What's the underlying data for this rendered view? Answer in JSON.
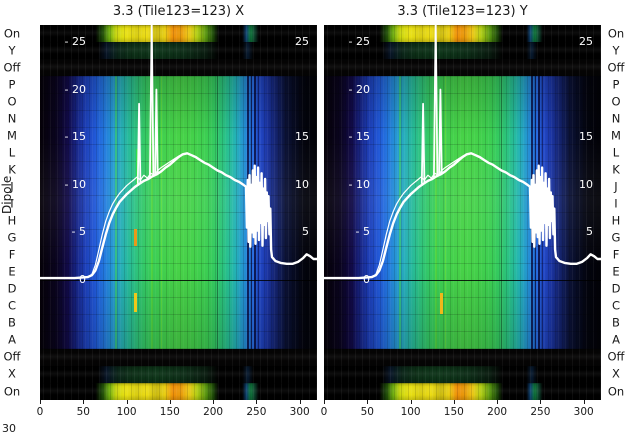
{
  "figure": {
    "ylabel": "Dipole",
    "corner_label": "30"
  },
  "chart_data": {
    "type": "heatmap",
    "description": "Two waterfall heatmaps with overlaid white bandpass spectrum lines",
    "charts": [
      {
        "title": "3.3 (Tile123=123) X"
      },
      {
        "title": "3.3 (Tile123=123) Y"
      }
    ],
    "x_axis": {
      "ticks": [
        0,
        50,
        100,
        150,
        200,
        250,
        300
      ],
      "range": [
        0,
        320
      ]
    },
    "inner_y_axis": {
      "zero_frac": 0.68,
      "unit_frac": 0.0254,
      "left_ticks": [
        {
          "label": "- 25",
          "value": 25
        },
        {
          "label": "- 20",
          "value": 20
        },
        {
          "label": "- 15",
          "value": 15
        },
        {
          "label": "- 10",
          "value": 10
        },
        {
          "label": "- 5",
          "value": 5
        },
        {
          "label": "0",
          "value": 0
        }
      ],
      "right_ticks": [
        {
          "label": "25",
          "value": 25
        },
        {
          "label": "15",
          "value": 15
        },
        {
          "label": "10",
          "value": 10
        },
        {
          "label": "5",
          "value": 5
        }
      ]
    },
    "rows": [
      "On",
      "Y",
      "Off",
      "P",
      "O",
      "N",
      "M",
      "L",
      "K",
      "J",
      "I",
      "H",
      "G",
      "F",
      "E",
      "D",
      "C",
      "B",
      "A",
      "Off",
      "X",
      "On"
    ],
    "row_types": [
      "on",
      "pol",
      "off",
      "body",
      "body",
      "body",
      "body",
      "body",
      "body",
      "body",
      "body",
      "body",
      "body",
      "body",
      "body",
      "body",
      "body",
      "body",
      "body",
      "off",
      "pol",
      "on"
    ],
    "off_row_color": "#050404",
    "line_color": "#ffffff",
    "colormap_stops": [
      [
        0.0,
        "#050108"
      ],
      [
        0.06,
        "#0a0420"
      ],
      [
        0.1,
        "#110a48"
      ],
      [
        0.126,
        "#16207c"
      ],
      [
        0.16,
        "#1c3cb4"
      ],
      [
        0.198,
        "#2158d8"
      ],
      [
        0.23,
        "#2377e0"
      ],
      [
        0.26,
        "#2596d4"
      ],
      [
        0.289,
        "#27adbd"
      ],
      [
        0.32,
        "#27bb9a"
      ],
      [
        0.35,
        "#2ec47c"
      ],
      [
        0.38,
        "#35ca64"
      ],
      [
        0.41,
        "#3bce55"
      ],
      [
        0.451,
        "#42d14c"
      ],
      [
        0.5,
        "#48d348"
      ],
      [
        0.55,
        "#44d24a"
      ],
      [
        0.6,
        "#3ccf52"
      ],
      [
        0.632,
        "#33ca62"
      ],
      [
        0.66,
        "#2bc47e"
      ],
      [
        0.685,
        "#26bd9a"
      ],
      [
        0.704,
        "#24b4b4"
      ],
      [
        0.73,
        "#2499cf"
      ],
      [
        0.755,
        "#237adf"
      ],
      [
        0.775,
        "#2360dd"
      ],
      [
        0.794,
        "#2148c8"
      ],
      [
        0.82,
        "#1b35a4"
      ],
      [
        0.845,
        "#152678"
      ],
      [
        0.87,
        "#0f1a52"
      ],
      [
        0.884,
        "#0b1238"
      ],
      [
        0.92,
        "#060a20"
      ],
      [
        0.95,
        "#03040e"
      ],
      [
        1.0,
        "#010106"
      ]
    ],
    "on_row_stops": [
      [
        0.0,
        "#000000"
      ],
      [
        0.2,
        "#000000"
      ],
      [
        0.225,
        "#1d4a08"
      ],
      [
        0.25,
        "#6fae10"
      ],
      [
        0.275,
        "#c8d50e"
      ],
      [
        0.31,
        "#e9e112"
      ],
      [
        0.35,
        "#d8cc10"
      ],
      [
        0.385,
        "#eede14"
      ],
      [
        0.42,
        "#c8b80e"
      ],
      [
        0.45,
        "#e8cf12"
      ],
      [
        0.48,
        "#ef8e08"
      ],
      [
        0.51,
        "#e79a0a"
      ],
      [
        0.535,
        "#eec614"
      ],
      [
        0.565,
        "#b5cf12"
      ],
      [
        0.6,
        "#55930e"
      ],
      [
        0.625,
        "#1d4a08"
      ],
      [
        0.645,
        "#000000"
      ],
      [
        0.73,
        "#000000"
      ],
      [
        0.745,
        "#0c3f6e"
      ],
      [
        0.76,
        "#0f7a3c"
      ],
      [
        0.775,
        "#0c3f2a"
      ],
      [
        0.79,
        "#000000"
      ],
      [
        1.0,
        "#000000"
      ]
    ],
    "pol_row_stops": [
      [
        0.0,
        "#000000"
      ],
      [
        0.21,
        "#000000"
      ],
      [
        0.24,
        "#071426"
      ],
      [
        0.28,
        "#0a2418"
      ],
      [
        0.33,
        "#0c2e16"
      ],
      [
        0.42,
        "#0d3418"
      ],
      [
        0.52,
        "#0c2c16"
      ],
      [
        0.6,
        "#081a0e"
      ],
      [
        0.645,
        "#000000"
      ],
      [
        0.73,
        "#000000"
      ],
      [
        0.75,
        "#071a30"
      ],
      [
        0.77,
        "#000000"
      ],
      [
        1.0,
        "#000000"
      ]
    ],
    "stripes": [
      {
        "x": 0.27,
        "w": 2,
        "color": "#3fd44f",
        "a": 0.55
      },
      {
        "x": 0.4,
        "w": 2,
        "color": "#62df3a",
        "a": 0.6
      },
      {
        "x": 0.435,
        "w": 1,
        "color": "#7ae636",
        "a": 0.5
      },
      {
        "x": 0.64,
        "w": 1,
        "color": "#000000",
        "a": 0.35
      },
      {
        "x": 0.748,
        "w": 2,
        "color": "#0a1248",
        "a": 0.85
      },
      {
        "x": 0.762,
        "w": 1,
        "color": "#0a1248",
        "a": 0.85
      },
      {
        "x": 0.774,
        "w": 2,
        "color": "#0a1248",
        "a": 0.9
      },
      {
        "x": 0.786,
        "w": 1,
        "color": "#101c68",
        "a": 0.8
      }
    ],
    "marks_per_chart": [
      [
        {
          "x": 0.34,
          "top": 0.545,
          "h": 0.045,
          "w": 3,
          "color": "#e8991a"
        },
        {
          "x": 0.34,
          "top": 0.715,
          "h": 0.05,
          "w": 3,
          "color": "#f0c81a"
        },
        {
          "x": 0.348,
          "top": 0.33,
          "h": 0.1,
          "w": 2,
          "color": "#35e04a"
        }
      ],
      [
        {
          "x": 0.42,
          "top": 0.715,
          "h": 0.055,
          "w": 3,
          "color": "#f0b81a"
        }
      ]
    ],
    "line_main": [
      [
        0,
        0.2
      ],
      [
        40,
        0.2
      ],
      [
        55,
        0.3
      ],
      [
        60,
        0.5
      ],
      [
        64,
        1.0
      ],
      [
        68,
        2.0
      ],
      [
        72,
        3.4
      ],
      [
        76,
        4.8
      ],
      [
        80,
        6.0
      ],
      [
        84,
        6.9
      ],
      [
        88,
        7.6
      ],
      [
        92,
        8.2
      ],
      [
        96,
        8.6
      ],
      [
        100,
        9.0
      ],
      [
        105,
        9.4
      ],
      [
        110,
        9.8
      ],
      [
        115,
        10.1
      ],
      [
        120,
        10.4
      ],
      [
        125,
        10.6
      ],
      [
        130,
        10.9
      ],
      [
        135,
        11.1
      ],
      [
        140,
        11.4
      ],
      [
        145,
        11.8
      ],
      [
        150,
        12.1
      ],
      [
        155,
        12.5
      ],
      [
        160,
        12.9
      ],
      [
        165,
        13.2
      ],
      [
        170,
        13.3
      ],
      [
        175,
        13.1
      ],
      [
        180,
        12.9
      ],
      [
        185,
        12.6
      ],
      [
        190,
        12.3
      ],
      [
        195,
        12.1
      ],
      [
        200,
        11.8
      ],
      [
        205,
        11.5
      ],
      [
        210,
        11.3
      ],
      [
        215,
        11.0
      ],
      [
        220,
        10.8
      ],
      [
        225,
        10.5
      ],
      [
        230,
        10.3
      ],
      [
        235,
        10.0
      ],
      [
        238,
        9.8
      ],
      [
        239,
        5.5
      ],
      [
        240,
        10.5
      ],
      [
        241,
        4.0
      ],
      [
        242,
        11.0
      ],
      [
        243,
        3.5
      ],
      [
        244,
        10.0
      ],
      [
        245,
        5.0
      ],
      [
        246,
        11.5
      ],
      [
        247,
        4.5
      ],
      [
        248,
        12.0
      ],
      [
        249,
        3.8
      ],
      [
        250,
        10.8
      ],
      [
        251,
        5.2
      ],
      [
        252,
        11.8
      ],
      [
        253,
        4.2
      ],
      [
        254,
        10.2
      ],
      [
        255,
        6.0
      ],
      [
        256,
        11.2
      ],
      [
        257,
        3.6
      ],
      [
        258,
        9.6
      ],
      [
        259,
        5.8
      ],
      [
        260,
        10.6
      ],
      [
        261,
        4.4
      ],
      [
        262,
        9.2
      ],
      [
        263,
        6.2
      ],
      [
        264,
        8.8
      ],
      [
        265,
        4.8
      ],
      [
        266,
        7.5
      ],
      [
        267,
        3.2
      ],
      [
        268,
        2.4
      ],
      [
        272,
        2.0
      ],
      [
        278,
        1.8
      ],
      [
        285,
        1.7
      ],
      [
        292,
        1.7
      ],
      [
        298,
        1.9
      ],
      [
        304,
        2.3
      ],
      [
        308,
        2.7
      ],
      [
        312,
        2.5
      ],
      [
        316,
        2.2
      ],
      [
        320,
        2.2
      ]
    ],
    "line_secondary": [
      [
        55,
        0.3
      ],
      [
        60,
        0.6
      ],
      [
        64,
        1.6
      ],
      [
        68,
        3.2
      ],
      [
        72,
        4.8
      ],
      [
        76,
        6.2
      ],
      [
        80,
        7.2
      ],
      [
        84,
        8.0
      ],
      [
        88,
        8.6
      ],
      [
        92,
        9.1
      ],
      [
        96,
        9.5
      ],
      [
        100,
        9.9
      ],
      [
        104,
        10.2
      ],
      [
        108,
        10.5
      ],
      [
        112,
        10.8
      ],
      [
        116,
        10.5
      ],
      [
        120,
        11.0
      ],
      [
        124,
        10.7
      ],
      [
        128,
        11.2
      ],
      [
        132,
        11.0
      ],
      [
        136,
        11.5
      ],
      [
        140,
        11.8
      ],
      [
        145,
        12.1
      ],
      [
        150,
        12.4
      ],
      [
        155,
        12.7
      ],
      [
        160,
        13.0
      ],
      [
        165,
        13.2
      ]
    ],
    "spikes": [
      [
        [
          113,
          10.1
        ],
        [
          114.5,
          18.5
        ],
        [
          116,
          10.1
        ]
      ],
      [
        [
          127,
          10.7
        ],
        [
          129,
          27.5
        ],
        [
          131,
          10.8
        ]
      ],
      [
        [
          133,
          11.0
        ],
        [
          134.5,
          20.0
        ],
        [
          136,
          11.1
        ]
      ]
    ]
  }
}
